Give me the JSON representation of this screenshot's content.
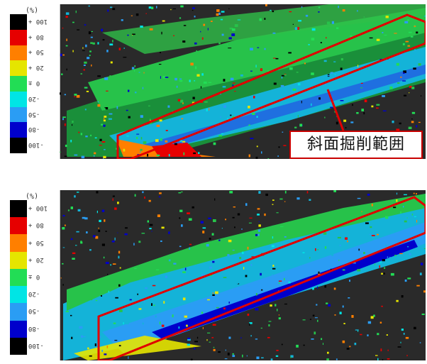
{
  "legend": {
    "unit": "(%)",
    "scale": [
      {
        "label": "100 +",
        "color": "#000000"
      },
      {
        "label": "80 +",
        "color": "#e60000"
      },
      {
        "label": "50 +",
        "color": "#ff7f00"
      },
      {
        "label": "20 +",
        "color": "#e5e500"
      },
      {
        "label": "0 ±",
        "color": "#22dd55"
      },
      {
        "label": "-20",
        "color": "#00e5e5"
      },
      {
        "label": "-50",
        "color": "#2a9df4"
      },
      {
        "label": "-80",
        "color": "#0000cc"
      },
      {
        "label": "-100",
        "color": "#000000"
      }
    ]
  },
  "top_view": {
    "annotation": "斜面掘削範囲"
  },
  "colors": {
    "highlight": "#e00000",
    "background": "#2a2a2a"
  }
}
